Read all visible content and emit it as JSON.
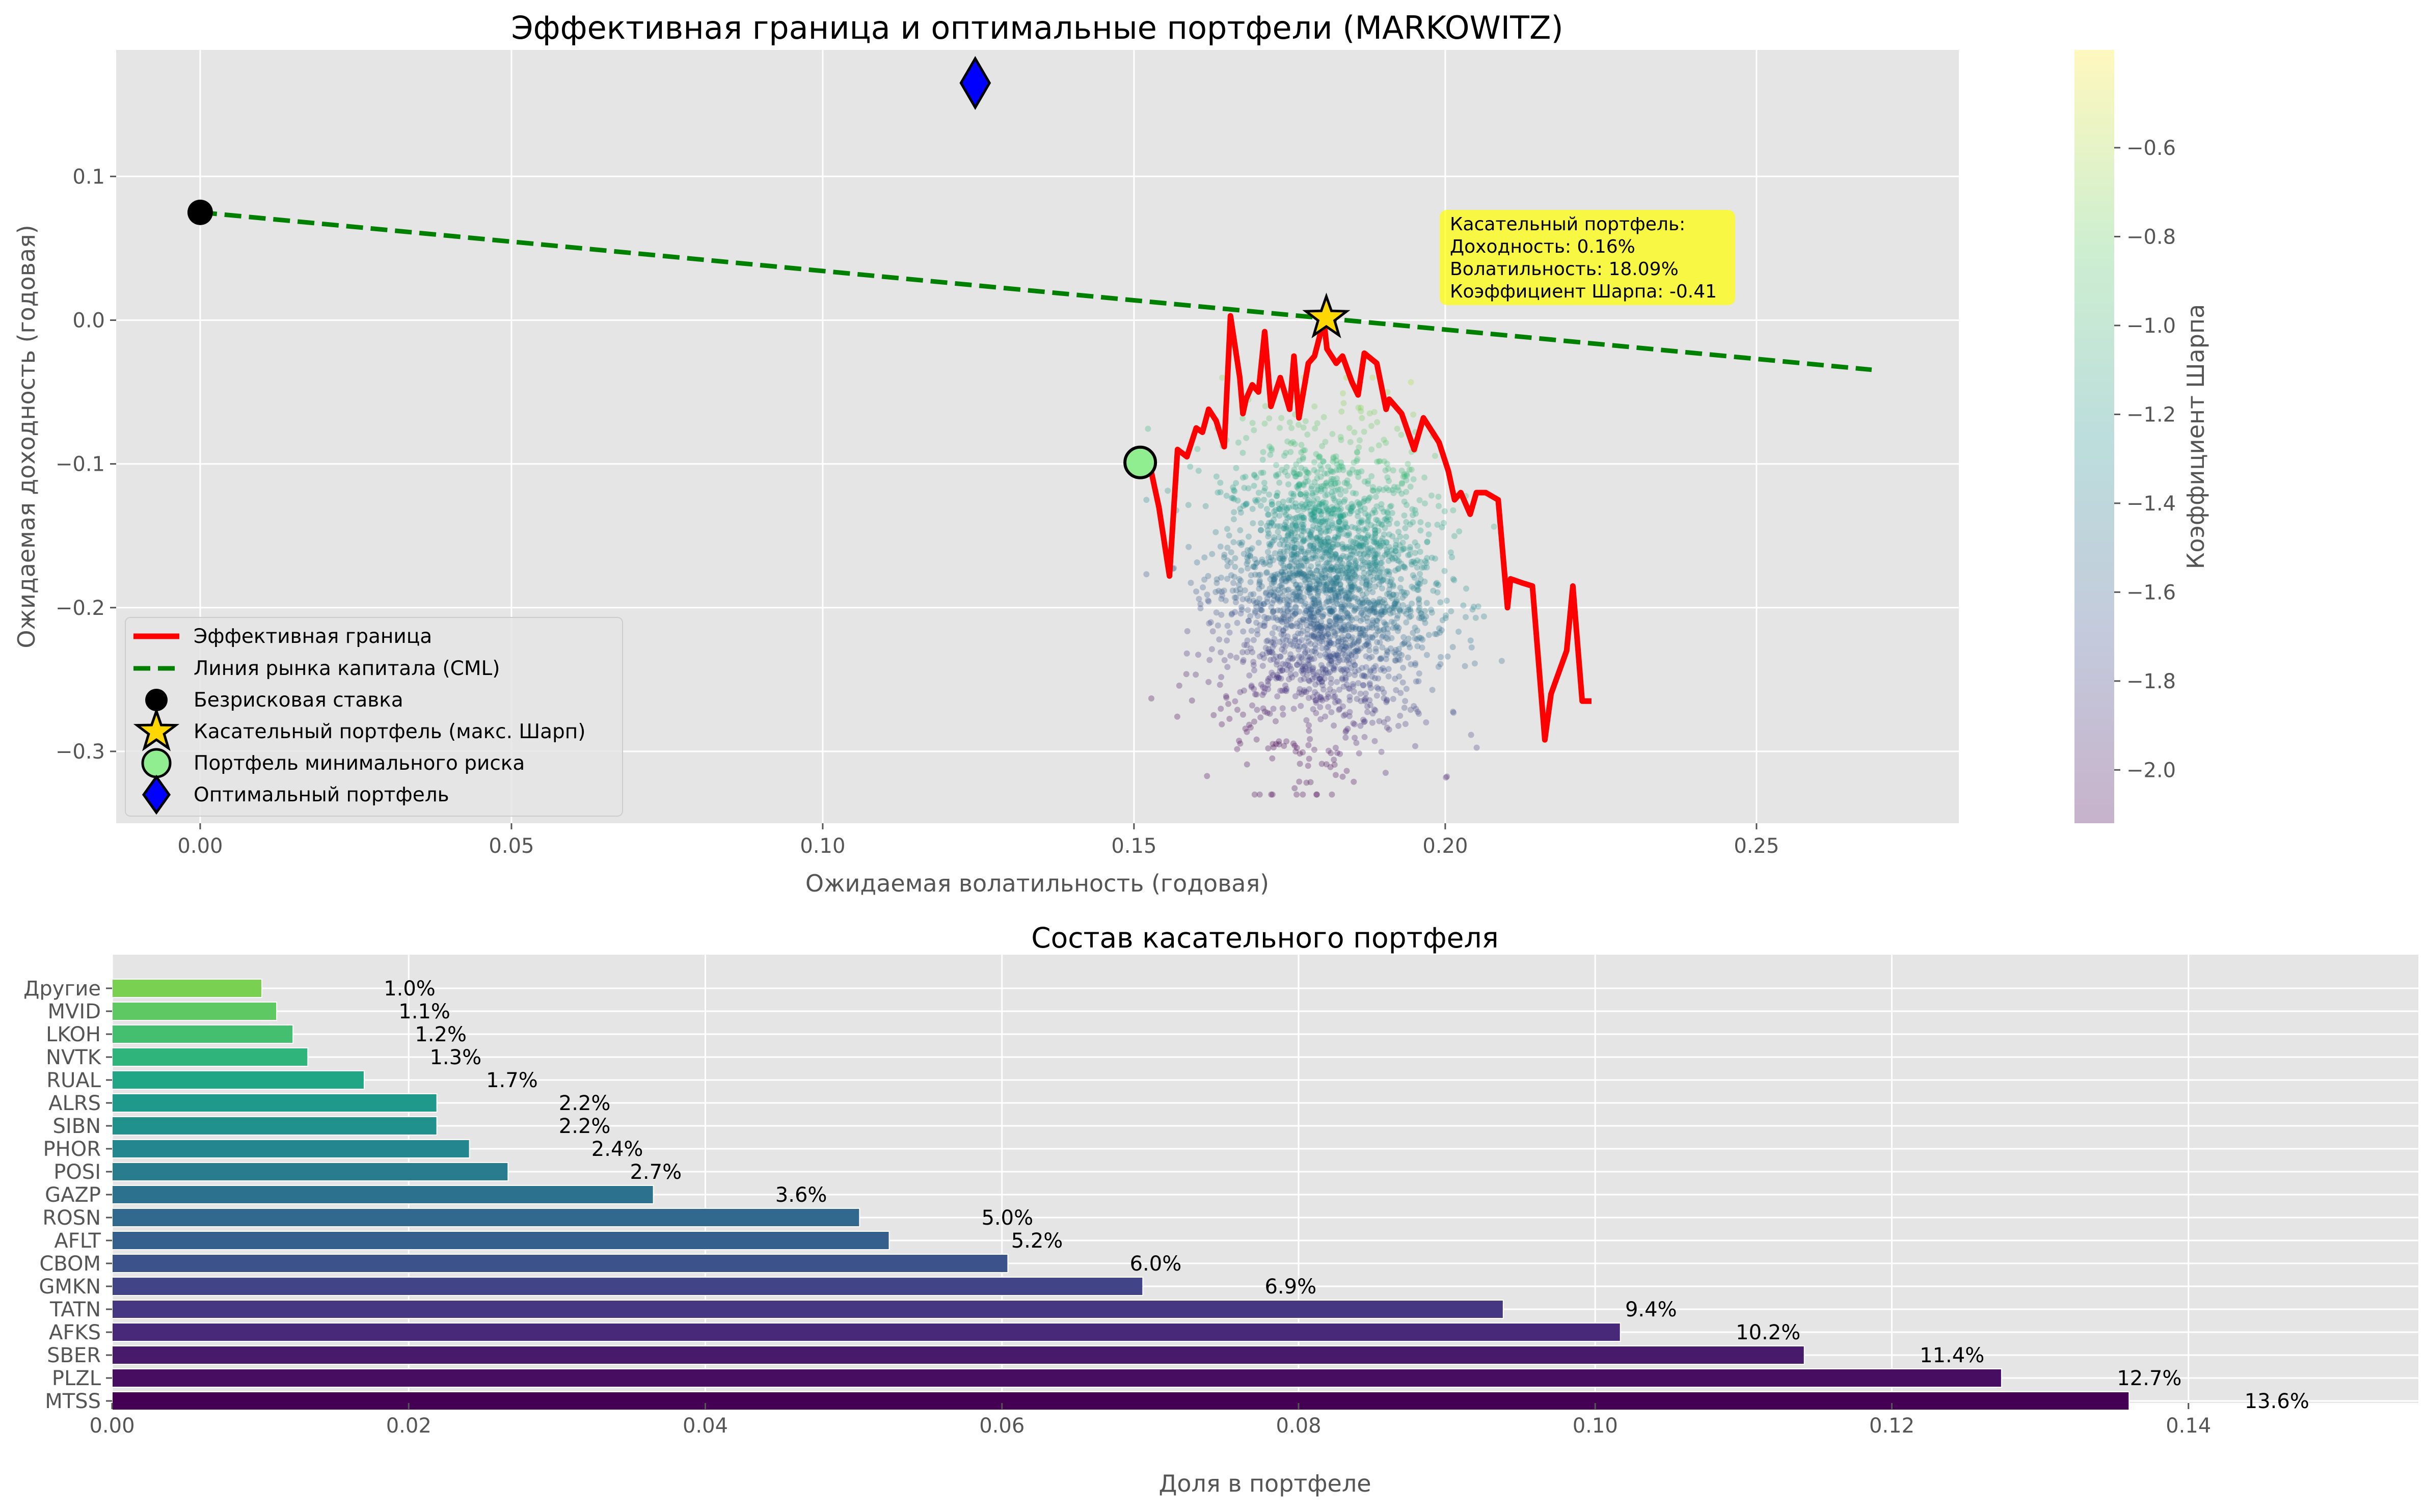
{
  "chart_data": [
    {
      "type": "scatter",
      "title": "Эффективная граница и оптимальные портфели (MARKOWITZ)",
      "xlabel": "Ожидаемая волатильность (годовая)",
      "ylabel": "Ожидаемая доходность (годовая)",
      "xlim": [
        -0.0135,
        0.2825
      ],
      "ylim": [
        -0.35,
        0.188
      ],
      "xticks": [
        0.0,
        0.05,
        0.1,
        0.15,
        0.2,
        0.25
      ],
      "xtick_labels": [
        "0.00",
        "0.05",
        "0.10",
        "0.15",
        "0.20",
        "0.25"
      ],
      "yticks": [
        0.1,
        0.0,
        -0.1,
        -0.2,
        -0.3
      ],
      "ytick_labels": [
        "0.1",
        "0.0",
        "−0.1",
        "−0.2",
        "−0.3"
      ],
      "grid": true,
      "legend_position": "lower-left",
      "colorbar": {
        "label": "Коэффициент Шарпа",
        "range": [
          -2.12,
          -0.38
        ],
        "ticks": [
          -0.6,
          -0.8,
          -1.0,
          -1.2,
          -1.4,
          -1.6,
          -1.8,
          -2.0
        ],
        "tick_labels": [
          "−0.6",
          "−0.8",
          "−1.0",
          "−1.2",
          "−1.4",
          "−1.6",
          "−1.8",
          "−2.0"
        ],
        "colormap": "viridis"
      },
      "simulated_portfolios": {
        "count": 2500,
        "vol_mean": 0.181,
        "vol_std": 0.0085,
        "vol_min": 0.152,
        "vol_max": 0.212,
        "ret_mean": -0.185,
        "ret_std": 0.052,
        "ret_min": -0.33,
        "ret_max": -0.04,
        "risk_free_rate": 0.075
      },
      "series": [
        {
          "name": "Эффективная граница",
          "color": "#ff0000",
          "x": [
            0.151,
            0.1525,
            0.154,
            0.1557,
            0.157,
            0.1585,
            0.16,
            0.161,
            0.162,
            0.1632,
            0.1645,
            0.1655,
            0.167,
            0.1675,
            0.168,
            0.169,
            0.17,
            0.171,
            0.172,
            0.1735,
            0.175,
            0.1757,
            0.1765,
            0.178,
            0.179,
            0.1805,
            0.181,
            0.1825,
            0.1835,
            0.185,
            0.186,
            0.187,
            0.189,
            0.1905,
            0.191,
            0.193,
            0.195,
            0.1965,
            0.199,
            0.2005,
            0.2015,
            0.2025,
            0.204,
            0.205,
            0.2065,
            0.2085,
            0.21,
            0.2105,
            0.2125,
            0.214,
            0.216,
            0.217,
            0.2195,
            0.2205,
            0.222,
            0.2235
          ],
          "y": [
            -0.098,
            -0.1,
            -0.13,
            -0.178,
            -0.09,
            -0.095,
            -0.075,
            -0.078,
            -0.062,
            -0.07,
            -0.088,
            0.003,
            -0.04,
            -0.065,
            -0.055,
            -0.045,
            -0.05,
            -0.008,
            -0.06,
            -0.04,
            -0.062,
            -0.025,
            -0.068,
            -0.03,
            -0.025,
            0.0,
            -0.02,
            -0.03,
            -0.025,
            -0.043,
            -0.052,
            -0.023,
            -0.03,
            -0.062,
            -0.055,
            -0.065,
            -0.09,
            -0.068,
            -0.085,
            -0.105,
            -0.125,
            -0.12,
            -0.135,
            -0.12,
            -0.12,
            -0.125,
            -0.2,
            -0.18,
            -0.183,
            -0.185,
            -0.292,
            -0.26,
            -0.23,
            -0.185,
            -0.265,
            -0.265
          ]
        },
        {
          "name": "Линия рынка капитала (CML)",
          "color": "#008000",
          "x": [
            0.0,
            0.2685
          ],
          "y": [
            0.075,
            -0.0345
          ]
        }
      ],
      "points": [
        {
          "name": "Безрисковая ставка",
          "x": 0.0,
          "y": 0.075,
          "color": "#000000",
          "marker": "circle"
        },
        {
          "name": "Касательный портфель (макс. Шарп)",
          "x": 0.1809,
          "y": 0.0016,
          "color": "#ffd700",
          "marker": "star"
        },
        {
          "name": "Портфель минимального риска",
          "x": 0.151,
          "y": -0.099,
          "color": "#90ee90",
          "marker": "circle"
        },
        {
          "name": "Оптимальный портфель",
          "x": 0.1245,
          "y": 0.165,
          "color": "#0000ff",
          "marker": "diamond"
        }
      ],
      "annotation": {
        "lines": [
          "Касательный портфель:",
          "Доходность: 0.16%",
          "Волатильность: 18.09%",
          "Коэффициент Шарпа: -0.41"
        ],
        "anchor_x": 0.2,
        "anchor_y": 0.015,
        "background": "#ffff00"
      }
    },
    {
      "type": "bar",
      "orientation": "horizontal",
      "title": "Состав касательного портфеля",
      "xlabel": "Доля в портфеле",
      "ylabel": "",
      "xlim": [
        0.0,
        0.1555
      ],
      "xticks": [
        0.0,
        0.02,
        0.04,
        0.06,
        0.08,
        0.1,
        0.12,
        0.14
      ],
      "xtick_labels": [
        "0.00",
        "0.02",
        "0.04",
        "0.06",
        "0.08",
        "0.10",
        "0.12",
        "0.14"
      ],
      "grid": true,
      "colormap": "viridis",
      "categories": [
        "Другие",
        "MVID",
        "LKOH",
        "NVTK",
        "RUAL",
        "ALRS",
        "SIBN",
        "PHOR",
        "POSI",
        "GAZP",
        "ROSN",
        "AFLT",
        "CBOM",
        "GMKN",
        "TATN",
        "AFKS",
        "SBER",
        "PLZL",
        "MTSS"
      ],
      "values": [
        0.0101,
        0.0111,
        0.0122,
        0.0132,
        0.017,
        0.0219,
        0.0219,
        0.0241,
        0.0267,
        0.0365,
        0.0504,
        0.0524,
        0.0604,
        0.0695,
        0.0938,
        0.1017,
        0.1141,
        0.1274,
        0.136
      ],
      "data_labels": [
        "1.0%",
        "1.1%",
        "1.2%",
        "1.3%",
        "1.7%",
        "2.2%",
        "2.2%",
        "2.4%",
        "2.7%",
        "3.6%",
        "5.0%",
        "5.2%",
        "6.0%",
        "6.9%",
        "9.4%",
        "10.2%",
        "11.4%",
        "12.7%",
        "13.6%"
      ],
      "colors": [
        "#7ad151",
        "#5ec962",
        "#44bf70",
        "#2fb47c",
        "#21a685",
        "#1f9a8a",
        "#21918c",
        "#24868e",
        "#287c8e",
        "#2c728e",
        "#31688e",
        "#355f8d",
        "#3b528b",
        "#414487",
        "#453781",
        "#482878",
        "#481a6c",
        "#470d60",
        "#440154"
      ]
    }
  ]
}
